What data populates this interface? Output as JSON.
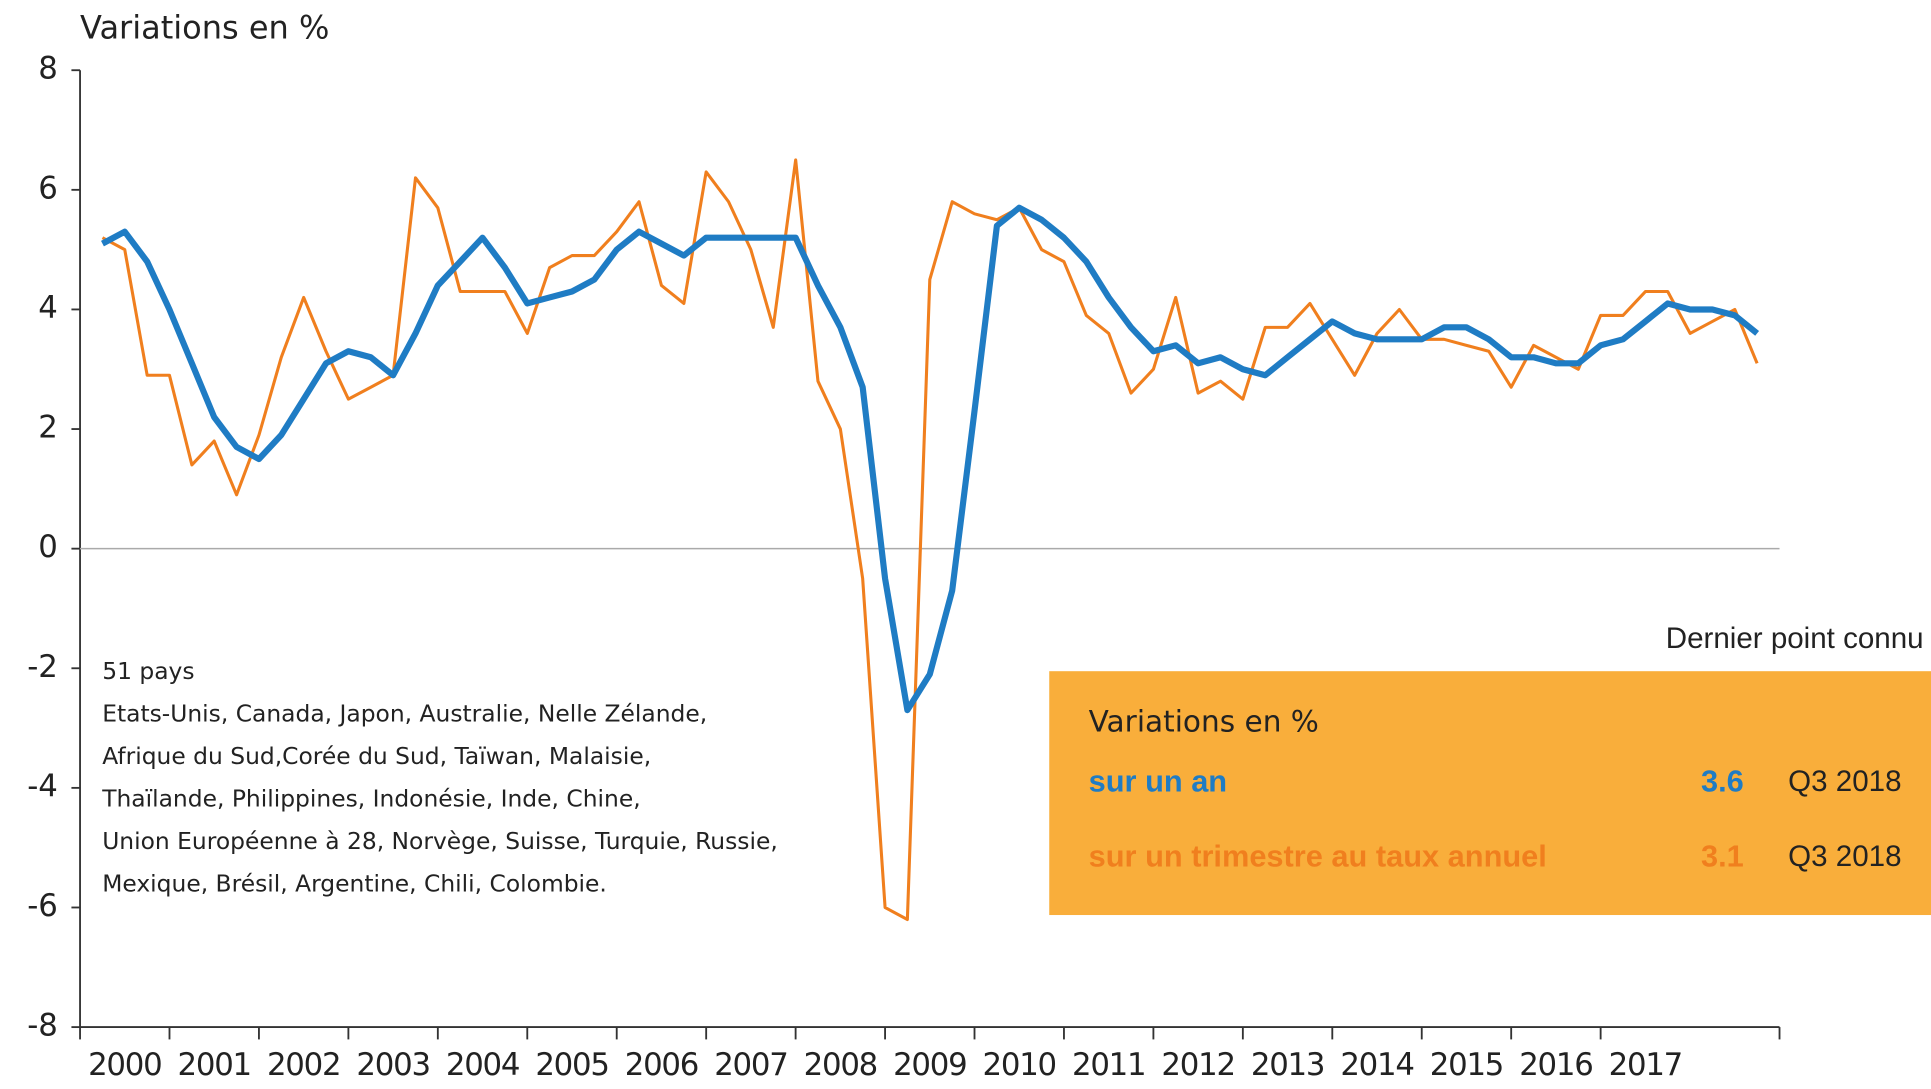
{
  "chart_data": {
    "type": "line",
    "y_label": "Variations en %",
    "x": [
      2000.25,
      2000.5,
      2000.75,
      2001,
      2001.25,
      2001.5,
      2001.75,
      2002,
      2002.25,
      2002.5,
      2002.75,
      2003,
      2003.25,
      2003.5,
      2003.75,
      2004,
      2004.25,
      2004.5,
      2004.75,
      2005,
      2005.25,
      2005.5,
      2005.75,
      2006,
      2006.25,
      2006.5,
      2006.75,
      2007,
      2007.25,
      2007.5,
      2007.75,
      2008,
      2008.25,
      2008.5,
      2008.75,
      2009,
      2009.25,
      2009.5,
      2009.75,
      2010,
      2010.25,
      2010.5,
      2010.75,
      2011,
      2011.25,
      2011.5,
      2011.75,
      2012,
      2012.25,
      2012.5,
      2012.75,
      2013,
      2013.25,
      2013.5,
      2013.75,
      2014,
      2014.25,
      2014.5,
      2014.75,
      2015,
      2015.25,
      2015.5,
      2015.75,
      2016,
      2016.25,
      2016.5,
      2016.75,
      2017,
      2017.25,
      2017.5,
      2017.75,
      2018,
      2018.25,
      2018.5,
      2018.75
    ],
    "series": [
      {
        "name": "sur un an",
        "color": "#1f7cc4",
        "latest_label": "Q3 2018",
        "values": [
          5.1,
          5.3,
          4.8,
          4.0,
          3.1,
          2.2,
          1.7,
          1.5,
          1.9,
          2.5,
          3.1,
          3.3,
          3.2,
          2.9,
          3.6,
          4.4,
          4.8,
          5.2,
          4.7,
          4.1,
          4.2,
          4.3,
          4.5,
          5.0,
          5.3,
          5.1,
          4.9,
          5.2,
          5.2,
          5.2,
          5.2,
          5.2,
          4.4,
          3.7,
          2.7,
          -0.5,
          -2.7,
          -2.1,
          -0.7,
          2.3,
          5.4,
          5.7,
          5.5,
          5.2,
          4.8,
          4.2,
          3.7,
          3.3,
          3.4,
          3.1,
          3.2,
          3.0,
          2.9,
          3.2,
          3.5,
          3.8,
          3.6,
          3.5,
          3.5,
          3.5,
          3.7,
          3.7,
          3.5,
          3.2,
          3.2,
          3.1,
          3.1,
          3.4,
          3.5,
          3.8,
          4.1,
          4.0,
          4.0,
          3.9,
          3.6
        ]
      },
      {
        "name": "sur un trimestre au taux annuel",
        "color": "#f07f1e",
        "latest_label": "Q3 2018",
        "values": [
          5.2,
          5.0,
          2.9,
          2.9,
          1.4,
          1.8,
          0.9,
          1.9,
          3.2,
          4.2,
          3.3,
          2.5,
          2.7,
          2.9,
          6.2,
          5.7,
          4.3,
          4.3,
          4.3,
          3.6,
          4.7,
          4.9,
          4.9,
          5.3,
          5.8,
          4.4,
          4.1,
          6.3,
          5.8,
          5.0,
          3.7,
          6.5,
          2.8,
          2.0,
          -0.5,
          -6.0,
          -6.2,
          4.5,
          5.8,
          5.6,
          5.5,
          5.7,
          5.0,
          4.8,
          3.9,
          3.6,
          2.6,
          3.0,
          4.2,
          2.6,
          2.8,
          2.5,
          3.7,
          3.7,
          4.1,
          3.5,
          2.9,
          3.6,
          4.0,
          3.5,
          3.5,
          3.4,
          3.3,
          2.7,
          3.4,
          3.2,
          3.0,
          3.9,
          3.9,
          4.3,
          4.3,
          3.6,
          3.8,
          4.0,
          3.1
        ]
      }
    ],
    "xlim": [
      2000,
      2019
    ],
    "xticks": [
      2000,
      2001,
      2002,
      2003,
      2004,
      2005,
      2006,
      2007,
      2008,
      2009,
      2010,
      2011,
      2012,
      2013,
      2014,
      2015,
      2016,
      2017
    ],
    "ylim": [
      -8,
      8
    ],
    "yticks": [
      -8,
      -6,
      -4,
      -2,
      0,
      2,
      4,
      6,
      8
    ],
    "legend_heading": "Dernier point connu",
    "legend_title": "Variations en %",
    "legend_color": "#f9ae3b",
    "note": [
      "51 pays",
      "Etats-Unis, Canada, Japon, Australie, Nelle Zélande,",
      "Afrique du Sud,Corée du Sud, Taïwan, Malaisie,",
      "Thaïlande, Philippines, Indonésie, Inde, Chine,",
      "Union Européenne à 28, Norvège, Suisse, Turquie, Russie,",
      "Mexique, Brésil, Argentine, Chili, Colombie."
    ]
  }
}
